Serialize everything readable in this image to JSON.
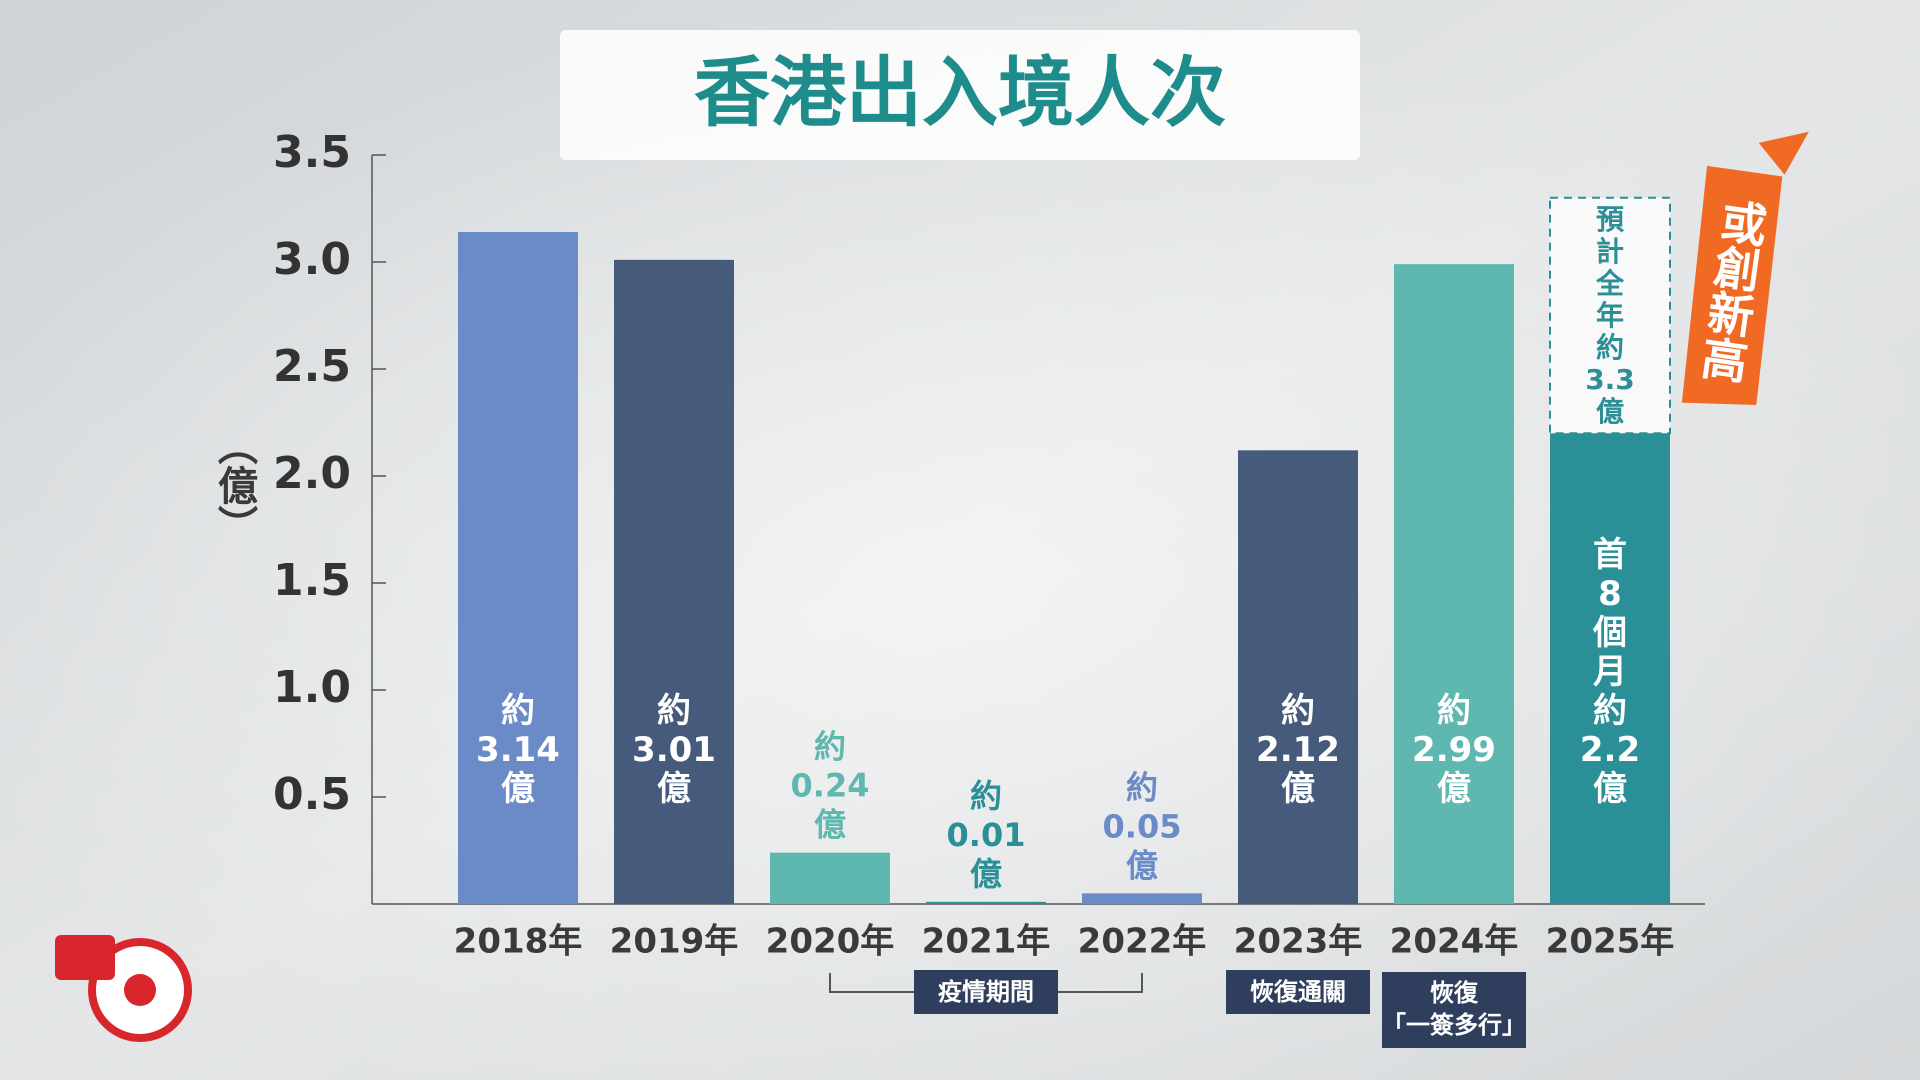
{
  "chart_data": {
    "type": "bar",
    "title": "香港出入境人次",
    "y_label": "（億）",
    "categories": [
      "2018年",
      "2019年",
      "2020年",
      "2021年",
      "2022年",
      "2023年",
      "2024年",
      "2025年"
    ],
    "values": [
      3.14,
      3.01,
      0.24,
      0.01,
      0.05,
      2.12,
      2.99,
      2.2
    ],
    "value_labels": [
      "約3.14億",
      "約3.01億",
      "約0.24億",
      "約0.01億",
      "約0.05億",
      "約2.12億",
      "約2.99億",
      "首8個月約2.2億"
    ],
    "colors": [
      "#6a8bc8",
      "#465a7c",
      "#5fb8b0",
      "#2a8f96",
      "#6a8bc8",
      "#465a7c",
      "#5fb8b0",
      "#2a8f96"
    ],
    "projection": {
      "value": 3.3,
      "label": "預計全年約3.3億",
      "color": "#2a8f96"
    },
    "badge": "或創新高",
    "annotations": [
      "疫情期間",
      "恢復通關",
      [
        "恢復",
        "「一簽多行」"
      ]
    ],
    "ylim": [
      0,
      3.5
    ],
    "yticks": [
      0.5,
      {
        "value": 1,
        "label": "1.0"
      },
      1.5,
      {
        "value": 2,
        "label": "2.0"
      },
      2.5,
      {
        "value": 3,
        "label": "3.0"
      },
      3.5
    ],
    "grid": false
  }
}
